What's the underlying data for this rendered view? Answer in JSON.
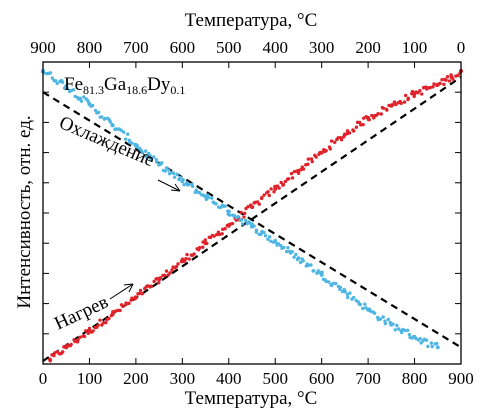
{
  "chart_data": {
    "type": "scatter",
    "title": "",
    "xlabel": "Температура, °C",
    "x2label": "Температура, °C",
    "ylabel": "Интенсивность, отн. ед.",
    "xlim": [
      0,
      900
    ],
    "x2lim": [
      900,
      0
    ],
    "x_ticks": [
      "0",
      "100",
      "200",
      "300",
      "400",
      "500",
      "600",
      "700",
      "800",
      "900"
    ],
    "x2_ticks": [
      "900",
      "800",
      "700",
      "600",
      "500",
      "400",
      "300",
      "200",
      "100",
      "0"
    ],
    "y_tick_count": 10,
    "ylim": [
      0,
      1
    ],
    "y_ticks_labeled": false,
    "grid": false,
    "legend": "none",
    "series": [
      {
        "name": "Нагрев",
        "color": "#e0232a",
        "x": [
          15,
          50,
          100,
          150,
          200,
          250,
          300,
          350,
          400,
          450,
          500,
          550,
          600,
          650,
          700,
          750,
          800,
          850,
          880,
          900
        ],
        "y": [
          0.015,
          0.055,
          0.11,
          0.165,
          0.22,
          0.28,
          0.34,
          0.4,
          0.46,
          0.52,
          0.58,
          0.64,
          0.7,
          0.76,
          0.815,
          0.855,
          0.895,
          0.925,
          0.95,
          0.97
        ],
        "fit": {
          "x": [
            0,
            900
          ],
          "y": [
            0.01,
            0.95
          ],
          "color": "#000000",
          "style": "dashed"
        }
      },
      {
        "name": "Охлаждение",
        "color": "#4fb6e3",
        "x": [
          0,
          50,
          100,
          150,
          200,
          250,
          300,
          350,
          400,
          450,
          500,
          550,
          600,
          650,
          700,
          750,
          800,
          850
        ],
        "y": [
          0.97,
          0.92,
          0.86,
          0.79,
          0.725,
          0.66,
          0.605,
          0.555,
          0.505,
          0.455,
          0.405,
          0.35,
          0.295,
          0.24,
          0.18,
          0.13,
          0.09,
          0.055
        ],
        "fit": {
          "x": [
            0,
            900
          ],
          "y": [
            0.9,
            0.055
          ],
          "color": "#000000",
          "style": "dashed"
        }
      }
    ],
    "annotations": [
      {
        "text": "Охлаждение",
        "target_series": "Охлаждение"
      },
      {
        "text": "Нагрев",
        "target_series": "Нагрев"
      }
    ],
    "composition": {
      "base": "Fe",
      "parts": [
        {
          "sub": "81.3"
        },
        {
          "el": "Ga",
          "sub": "18.6"
        },
        {
          "el": "Dy",
          "sub": "0.1"
        }
      ]
    }
  }
}
